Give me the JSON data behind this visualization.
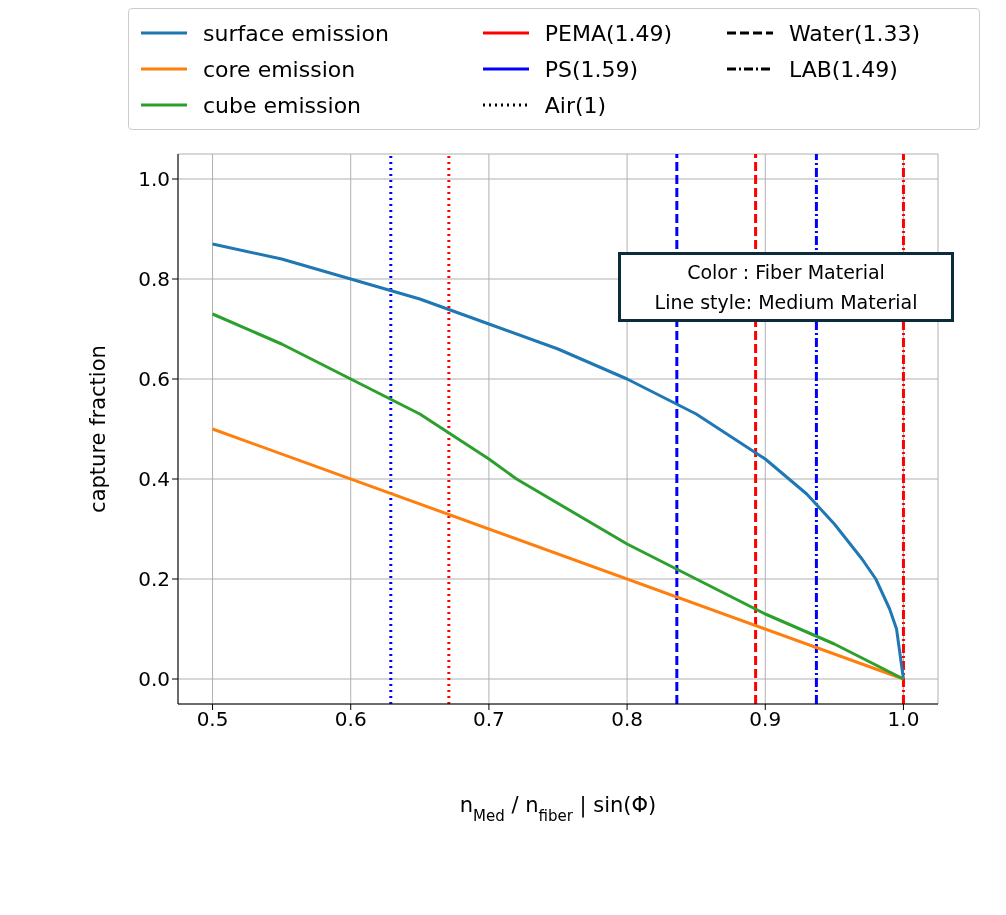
{
  "chart_data": {
    "type": "line",
    "xlabel": "n$_{Med}$ / n$_{fiber}$ | sin(Φ)",
    "ylabel": "capture fraction",
    "xlim": [
      0.475,
      1.025
    ],
    "ylim": [
      -0.05,
      1.05
    ],
    "xticks": [
      0.5,
      0.6,
      0.7,
      0.8,
      0.9,
      {
        "value": 1.0,
        "label": "1.0"
      }
    ],
    "yticks": [
      {
        "value": 0.0,
        "label": "0.0"
      },
      0.2,
      0.4,
      0.6,
      0.8,
      {
        "value": 1.0,
        "label": "1.0"
      }
    ],
    "grid": true,
    "legend": "top",
    "line_style": "solid",
    "marker": "none",
    "series": [
      {
        "name": "surface emission",
        "color": "#1f77b4",
        "x": [
          0.5,
          0.55,
          0.6,
          0.65,
          0.7,
          0.75,
          0.8,
          0.85,
          0.9,
          0.93,
          0.95,
          0.97,
          0.98,
          0.99,
          0.995,
          1.0
        ],
        "values": [
          0.87,
          0.84,
          0.8,
          0.76,
          0.71,
          0.66,
          0.6,
          0.53,
          0.44,
          0.37,
          0.31,
          0.24,
          0.2,
          0.14,
          0.1,
          0.0
        ]
      },
      {
        "name": "core emission",
        "color": "#ff7f0e",
        "x": [
          0.5,
          1.0
        ],
        "values": [
          0.5,
          0.0
        ]
      },
      {
        "name": "cube emission",
        "color": "#2ca02c",
        "x": [
          0.5,
          0.55,
          0.6,
          0.65,
          0.7,
          0.72,
          0.8,
          0.85,
          0.9,
          0.95,
          1.0
        ],
        "values": [
          0.73,
          0.67,
          0.6,
          0.53,
          0.44,
          0.4,
          0.27,
          0.2,
          0.13,
          0.07,
          0.0
        ]
      },
      {
        "name": "PEMA(1.49)",
        "color": "#ff0000",
        "line_style": "solid"
      },
      {
        "name": "PS(1.59)",
        "color": "#0000ff",
        "line_style": "solid"
      },
      {
        "name": "Air(1)",
        "color": "#000000",
        "line_style": "dotted"
      },
      {
        "name": "Water(1.33)",
        "color": "#000000",
        "line_style": "dashed"
      },
      {
        "name": "LAB(1.49)",
        "color": "#000000",
        "line_style": "dashdot"
      }
    ],
    "ref_lines": [
      {
        "axis": "x",
        "value": 0.629,
        "color": "#0000ff",
        "line_style": "dotted"
      },
      {
        "axis": "x",
        "value": 0.671,
        "color": "#ff0000",
        "line_style": "dotted"
      },
      {
        "axis": "x",
        "value": 0.836,
        "color": "#0000ff",
        "line_style": "dashed"
      },
      {
        "axis": "x",
        "value": 0.893,
        "color": "#ff0000",
        "line_style": "dashed"
      },
      {
        "axis": "x",
        "value": 0.937,
        "color": "#0000ff",
        "line_style": "dashdot"
      },
      {
        "axis": "x",
        "value": 1.0,
        "color": "#ff0000",
        "line_style": "dashdot"
      }
    ],
    "annotations": [
      "Color : Fiber Material",
      "Line style: Medium Material"
    ]
  }
}
